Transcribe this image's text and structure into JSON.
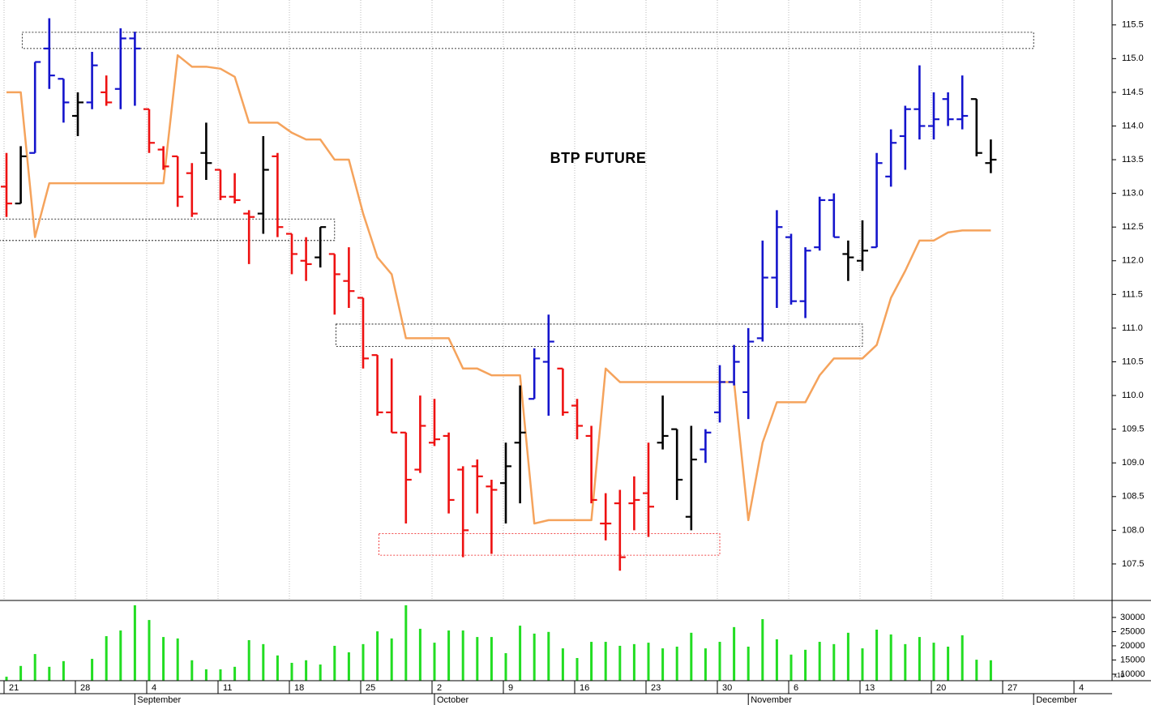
{
  "chart_data": {
    "type": "ohlc",
    "title": "BTP FUTURE",
    "categories": [
      "21",
      null,
      null,
      null,
      null,
      "28",
      null,
      null,
      null,
      null,
      "4",
      null,
      null,
      null,
      null,
      "11",
      null,
      null,
      null,
      null,
      "18",
      null,
      null,
      null,
      null,
      "25",
      null,
      null,
      null,
      null,
      "2",
      null,
      null,
      null,
      null,
      "9",
      null,
      null,
      null,
      null,
      "16",
      null,
      null,
      null,
      null,
      "23",
      null,
      null,
      null,
      null,
      "30",
      null,
      null,
      null,
      null,
      "6",
      null,
      null,
      null,
      null,
      "13",
      null,
      null,
      null,
      null,
      "20",
      null,
      null,
      null,
      null,
      "27",
      null,
      null,
      null,
      null,
      "4"
    ],
    "months": [
      null,
      null,
      null,
      null,
      null,
      null,
      null,
      null,
      null,
      "September",
      null,
      null,
      null,
      null,
      null,
      null,
      null,
      null,
      null,
      null,
      null,
      null,
      null,
      null,
      null,
      null,
      null,
      null,
      null,
      null,
      "October",
      null,
      null,
      null,
      null,
      null,
      null,
      null,
      null,
      null,
      null,
      null,
      null,
      null,
      null,
      null,
      null,
      null,
      null,
      null,
      null,
      null,
      "November",
      null,
      null,
      null,
      null,
      null,
      null,
      null,
      null,
      null,
      null,
      null,
      null,
      null,
      null,
      null,
      null,
      null,
      null,
      null,
      "December",
      null
    ],
    "open": [
      113.1,
      112.85,
      113.6,
      115.15,
      114.7,
      114.15,
      114.35,
      114.5,
      114.55,
      115.3,
      114.25,
      113.65,
      113.55,
      113.3,
      113.6,
      113.35,
      112.95,
      112.7,
      112.7,
      113.55,
      112.4,
      112.0,
      112.05,
      112.1,
      111.7,
      111.45,
      110.6,
      109.75,
      109.45,
      108.9,
      109.3,
      109.4,
      108.9,
      108.95,
      108.65,
      108.7,
      109.3,
      109.95,
      110.5,
      110.4,
      109.85,
      109.4,
      108.1,
      108.4,
      108.4,
      108.55,
      109.3,
      109.5,
      108.2,
      109.2,
      109.75,
      110.2,
      110.05,
      110.85,
      111.75,
      112.35,
      111.4,
      112.2,
      112.9,
      112.1,
      112.0,
      112.2,
      113.25,
      113.85,
      114.25,
      114.0,
      114.4,
      114.1,
      114.4,
      113.45,
      null,
      null,
      null,
      null,
      null,
      null
    ],
    "high": [
      113.6,
      113.7,
      114.95,
      115.6,
      114.7,
      114.5,
      115.1,
      114.75,
      115.45,
      115.4,
      114.25,
      113.7,
      113.55,
      113.45,
      114.05,
      113.35,
      113.3,
      112.75,
      113.85,
      113.6,
      112.4,
      112.35,
      112.5,
      112.1,
      112.2,
      111.45,
      110.6,
      110.55,
      109.45,
      110.0,
      109.95,
      109.45,
      108.95,
      109.05,
      108.75,
      109.3,
      110.15,
      110.7,
      111.2,
      110.4,
      109.95,
      109.55,
      108.55,
      108.6,
      108.8,
      109.3,
      110.0,
      109.5,
      109.55,
      109.5,
      110.45,
      110.75,
      111.0,
      112.3,
      112.75,
      112.4,
      112.2,
      112.95,
      113.0,
      112.3,
      112.6,
      113.6,
      113.95,
      114.3,
      114.9,
      114.5,
      114.5,
      114.75,
      114.4,
      113.8,
      null,
      null,
      null,
      null,
      null,
      null
    ],
    "low": [
      112.65,
      112.85,
      113.6,
      114.55,
      114.05,
      113.85,
      114.25,
      114.3,
      114.25,
      114.3,
      113.6,
      113.35,
      112.8,
      112.65,
      113.2,
      112.9,
      112.85,
      111.95,
      112.4,
      112.35,
      111.8,
      111.7,
      111.9,
      111.2,
      111.3,
      110.4,
      109.7,
      109.45,
      108.1,
      108.85,
      109.25,
      108.25,
      107.6,
      108.25,
      107.65,
      108.1,
      108.4,
      109.95,
      109.7,
      109.7,
      109.35,
      108.4,
      107.85,
      107.4,
      108.0,
      107.9,
      109.2,
      108.45,
      108.0,
      109.0,
      109.6,
      110.15,
      109.65,
      110.8,
      111.3,
      111.35,
      111.15,
      112.15,
      112.35,
      111.7,
      111.85,
      112.2,
      113.1,
      113.35,
      113.8,
      113.8,
      114.0,
      113.95,
      113.55,
      113.3,
      null,
      null,
      null,
      null,
      null,
      null
    ],
    "close": [
      112.85,
      113.55,
      114.95,
      114.75,
      114.35,
      114.35,
      114.9,
      114.35,
      115.3,
      115.15,
      113.75,
      113.4,
      112.95,
      112.7,
      113.45,
      112.95,
      112.9,
      112.65,
      113.35,
      112.5,
      112.1,
      111.95,
      112.5,
      111.8,
      111.55,
      110.55,
      109.75,
      109.45,
      108.75,
      109.55,
      109.35,
      108.45,
      108.0,
      108.8,
      108.6,
      108.95,
      109.45,
      110.55,
      110.8,
      109.75,
      109.55,
      108.45,
      108.1,
      107.6,
      108.45,
      108.35,
      109.4,
      108.75,
      109.05,
      109.45,
      110.2,
      110.5,
      110.8,
      111.75,
      112.5,
      111.4,
      112.15,
      112.9,
      112.35,
      112.05,
      112.15,
      113.45,
      113.75,
      114.25,
      114.0,
      114.1,
      114.1,
      114.15,
      113.6,
      113.5,
      null,
      null,
      null,
      null,
      null,
      null
    ],
    "colors": [
      "#ee1111",
      "#000000",
      "#1414cc",
      "#1414cc",
      "#1414cc",
      "#000000",
      "#1414cc",
      "#ee1111",
      "#1414cc",
      "#1414cc",
      "#ee1111",
      "#ee1111",
      "#ee1111",
      "#ee1111",
      "#000000",
      "#ee1111",
      "#ee1111",
      "#ee1111",
      "#000000",
      "#ee1111",
      "#ee1111",
      "#ee1111",
      "#000000",
      "#ee1111",
      "#ee1111",
      "#ee1111",
      "#ee1111",
      "#ee1111",
      "#ee1111",
      "#ee1111",
      "#ee1111",
      "#ee1111",
      "#ee1111",
      "#ee1111",
      "#ee1111",
      "#000000",
      "#000000",
      "#1414cc",
      "#1414cc",
      "#ee1111",
      "#ee1111",
      "#ee1111",
      "#ee1111",
      "#ee1111",
      "#ee1111",
      "#ee1111",
      "#000000",
      "#000000",
      "#000000",
      "#1414cc",
      "#1414cc",
      "#1414cc",
      "#1414cc",
      "#1414cc",
      "#1414cc",
      "#1414cc",
      "#1414cc",
      "#1414cc",
      "#1414cc",
      "#000000",
      "#000000",
      "#1414cc",
      "#1414cc",
      "#1414cc",
      "#1414cc",
      "#1414cc",
      "#1414cc",
      "#1414cc",
      "#000000",
      "#000000",
      null,
      null,
      null,
      null,
      null,
      null
    ],
    "line": {
      "color": "#f5a35c",
      "values": [
        114.5,
        114.5,
        112.35,
        113.15,
        113.15,
        113.15,
        113.15,
        113.15,
        113.15,
        113.15,
        113.15,
        113.15,
        115.05,
        114.88,
        114.88,
        114.85,
        114.73,
        114.05,
        114.05,
        114.05,
        113.9,
        113.8,
        113.8,
        113.5,
        113.5,
        112.7,
        112.05,
        111.8,
        110.85,
        110.85,
        110.85,
        110.85,
        110.4,
        110.4,
        110.3,
        110.3,
        110.3,
        108.1,
        108.15,
        108.15,
        108.15,
        108.15,
        110.4,
        110.2,
        110.2,
        110.2,
        110.2,
        110.2,
        110.2,
        110.2,
        110.2,
        110.2,
        108.15,
        109.3,
        109.9,
        109.9,
        109.9,
        110.3,
        110.55,
        110.55,
        110.55,
        110.75,
        111.45,
        111.85,
        112.3,
        112.3,
        112.42,
        112.45,
        112.45,
        112.45,
        null,
        null,
        null,
        null,
        null,
        null
      ]
    },
    "zones": [
      {
        "start": 1.1,
        "end": 72,
        "low": 115.15,
        "high": 115.39,
        "color": "#000000"
      },
      {
        "start": -0.5,
        "end": 23,
        "low": 112.3,
        "high": 112.62,
        "color": "#000000"
      },
      {
        "start": 23.1,
        "end": 60,
        "low": 110.73,
        "high": 111.06,
        "color": "#000000"
      },
      {
        "start": 26.1,
        "end": 50,
        "low": 107.63,
        "high": 107.95,
        "color": "#ee1111"
      }
    ],
    "ylim": [
      106.97,
      115.87
    ],
    "yticks": [
      107.5,
      {
        "value": 108,
        "label": "108.0"
      },
      108.5,
      {
        "value": 109,
        "label": "109.0"
      },
      109.5,
      {
        "value": 110,
        "label": "110.0"
      },
      110.5,
      {
        "value": 111,
        "label": "111.0"
      },
      111.5,
      {
        "value": 112,
        "label": "112.0"
      },
      112.5,
      {
        "value": 113,
        "label": "113.0"
      },
      113.5,
      {
        "value": 114,
        "label": "114.0"
      },
      114.5,
      {
        "value": 115,
        "label": "115.0"
      },
      115.5
    ],
    "grid": true,
    "volume": {
      "type": "bar",
      "color": "#22dd22",
      "unit_label": "x10",
      "values": [
        9100,
        12900,
        17100,
        12600,
        14600,
        7800,
        15400,
        23400,
        25400,
        34300,
        29100,
        23100,
        22600,
        14900,
        11700,
        11700,
        12600,
        22000,
        20600,
        16600,
        14000,
        14900,
        13400,
        20000,
        17700,
        20600,
        25100,
        22600,
        34300,
        26000,
        21100,
        25400,
        25400,
        23100,
        23100,
        17400,
        27100,
        24300,
        24900,
        19100,
        15700,
        21400,
        21400,
        20000,
        20600,
        21100,
        19100,
        19700,
        24600,
        19100,
        21400,
        26600,
        19700,
        29400,
        22300,
        16900,
        18600,
        21400,
        20600,
        24600,
        19100,
        25700,
        24000,
        20600,
        23100,
        21100,
        19700,
        23700,
        15100,
        14900,
        null,
        null,
        null,
        null,
        null,
        null
      ],
      "ylim": [
        7700,
        35700
      ],
      "yticks": [
        10000,
        15000,
        20000,
        25000,
        30000
      ]
    }
  }
}
